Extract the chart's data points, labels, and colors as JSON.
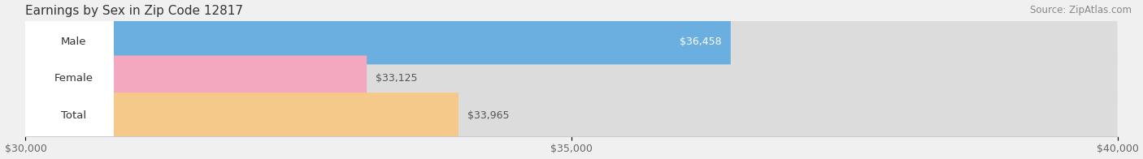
{
  "title": "Earnings by Sex in Zip Code 12817",
  "source": "Source: ZipAtlas.com",
  "categories": [
    "Male",
    "Female",
    "Total"
  ],
  "values": [
    36458,
    33125,
    33965
  ],
  "bar_colors": [
    "#6aafe0",
    "#f4a8bf",
    "#f5c98a"
  ],
  "label_inside": [
    true,
    false,
    false
  ],
  "label_text_colors_inside": [
    "white",
    "#555555",
    "#555555"
  ],
  "xmin": 30000,
  "xmax": 40000,
  "xticks": [
    30000,
    35000,
    40000
  ],
  "xtick_labels": [
    "$30,000",
    "$35,000",
    "$40,000"
  ],
  "bar_height": 0.62,
  "background_color": "#f0f0f0",
  "bar_bg_color": "#dcdcdc",
  "title_fontsize": 11,
  "source_fontsize": 8.5,
  "label_fontsize": 9,
  "tick_fontsize": 9,
  "category_fontsize": 9.5
}
